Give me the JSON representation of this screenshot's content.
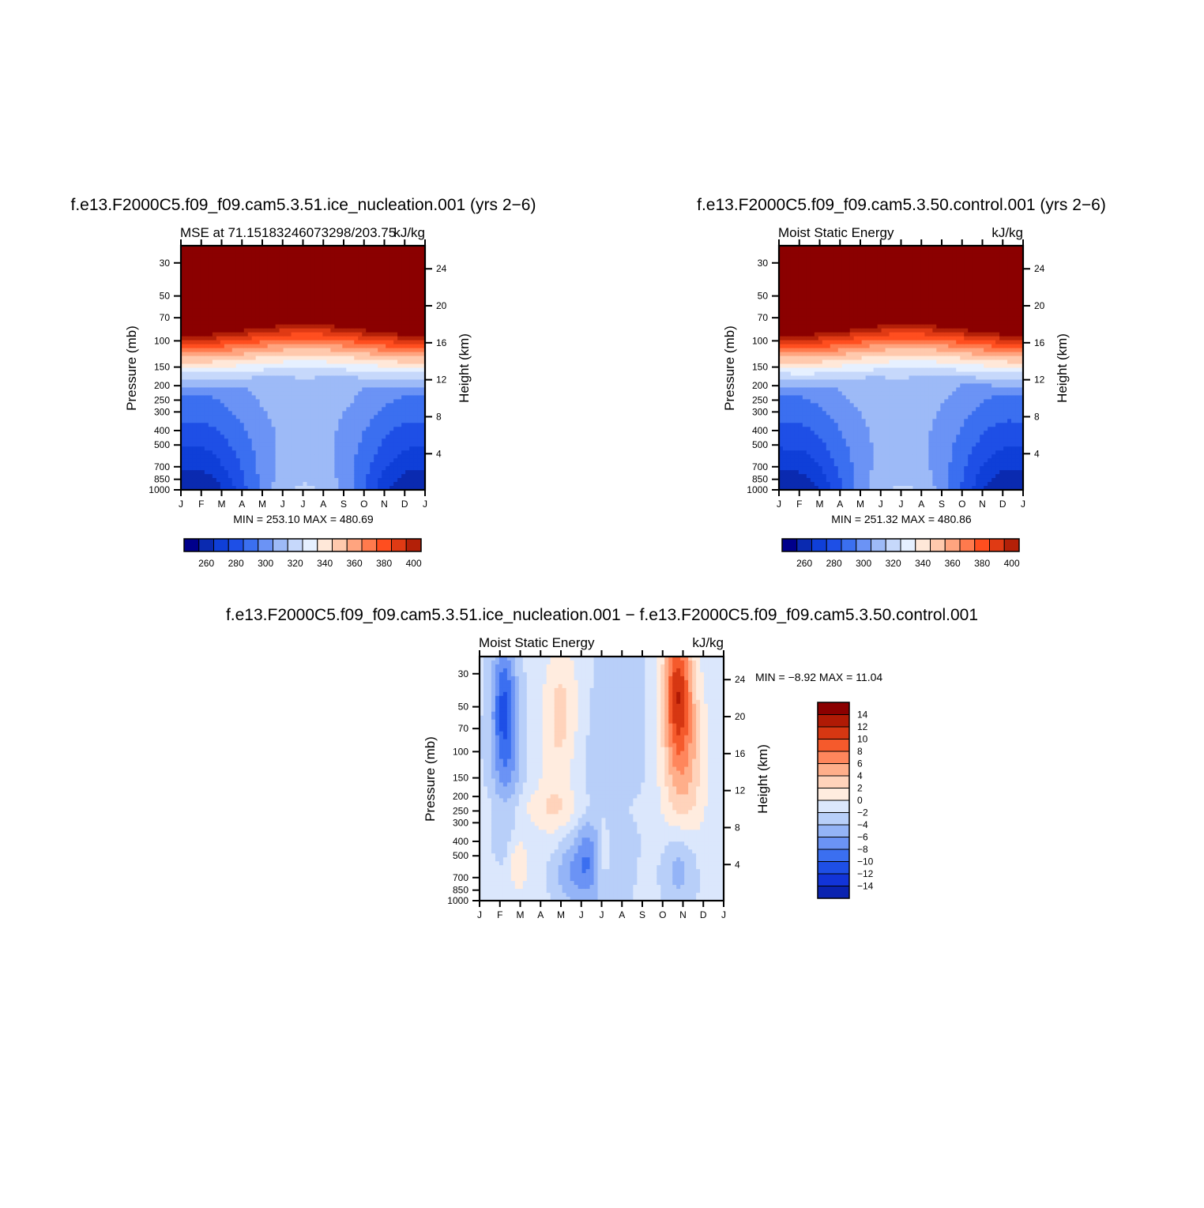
{
  "colors": {
    "absolute_levels": [
      "#00008b",
      "#0a2ab0",
      "#0f3fd8",
      "#1e4fe6",
      "#3b6ff0",
      "#6b93f5",
      "#9dbaf7",
      "#c6d8fb",
      "#e6f0ff",
      "#ffe8d9",
      "#ffc9ad",
      "#ffa47f",
      "#ff7a4d",
      "#ff4e1f",
      "#e03a14",
      "#b32008",
      "#8b0000"
    ],
    "difference_levels": [
      "#000080",
      "#0a23b0",
      "#1234d8",
      "#1e4fe6",
      "#3b6ff0",
      "#6b93f5",
      "#94b4f7",
      "#b8cff9",
      "#dbe7fc",
      "#ffecdf",
      "#ffd3bb",
      "#ffae8a",
      "#ff865c",
      "#f55a2c",
      "#d63712",
      "#b01a05",
      "#8b0000"
    ]
  },
  "charts": [
    {
      "id": "panel-test",
      "title": "f.e13.F2000C5.f09_f09.cam5.3.51.ice_nucleation.001 (yrs 2−6)",
      "left_label": "MSE at 71.15183246073298/203.75",
      "right_label": "kJ/kg",
      "ylabel": "Pressure (mb)",
      "y2label": "Height (km)",
      "minmax": "MIN = 253.10 MAX = 480.69",
      "colorbar_ticks": [
        "260",
        "280",
        "300",
        "320",
        "340",
        "360",
        "380",
        "400"
      ]
    },
    {
      "id": "panel-control",
      "title": "f.e13.F2000C5.f09_f09.cam5.3.50.control.001 (yrs 2−6)",
      "left_label": "Moist Static Energy",
      "right_label": "kJ/kg",
      "ylabel": "Pressure (mb)",
      "y2label": "Height (km)",
      "minmax": "MIN = 251.32 MAX = 480.86",
      "colorbar_ticks": [
        "260",
        "280",
        "300",
        "320",
        "340",
        "360",
        "380",
        "400"
      ]
    },
    {
      "id": "panel-diff",
      "title": "f.e13.F2000C5.f09_f09.cam5.3.51.ice_nucleation.001 − f.e13.F2000C5.f09_f09.cam5.3.50.control.001",
      "left_label": "Moist Static Energy",
      "right_label": "kJ/kg",
      "ylabel": "Pressure (mb)",
      "y2label": "Height (km)",
      "minmax": "MIN =   −8.92 MAX =   11.04",
      "colorbar_ticks": [
        "14",
        "12",
        "10",
        "8",
        "6",
        "4",
        "2",
        "0",
        "−2",
        "−4",
        "−6",
        "−8",
        "−10",
        "−12",
        "−14"
      ]
    }
  ],
  "chart_data": [
    {
      "type": "heatmap",
      "title": "f.e13.F2000C5.f09_f09.cam5.3.51.ice_nucleation.001 (yrs 2−6)",
      "xlabel": "",
      "ylabel": "Pressure (mb)",
      "y2label": "Height (km)",
      "x_ticks": [
        "J",
        "F",
        "M",
        "A",
        "M",
        "J",
        "J",
        "A",
        "S",
        "O",
        "N",
        "D",
        "J"
      ],
      "y_ticks": [
        30,
        50,
        70,
        100,
        150,
        200,
        250,
        300,
        400,
        500,
        700,
        850,
        1000
      ],
      "y2_ticks": [
        4,
        8,
        12,
        16,
        20,
        24
      ],
      "y_scale": "log",
      "ylim": [
        1000,
        23
      ],
      "colorbar": [
        260,
        280,
        300,
        320,
        340,
        360,
        380,
        400
      ],
      "min": 253.1,
      "max": 480.69,
      "units": "kJ/kg"
    },
    {
      "type": "heatmap",
      "title": "f.e13.F2000C5.f09_f09.cam5.3.50.control.001 (yrs 2−6)",
      "xlabel": "",
      "ylabel": "Pressure (mb)",
      "y2label": "Height (km)",
      "x_ticks": [
        "J",
        "F",
        "M",
        "A",
        "M",
        "J",
        "J",
        "A",
        "S",
        "O",
        "N",
        "D",
        "J"
      ],
      "y_ticks": [
        30,
        50,
        70,
        100,
        150,
        200,
        250,
        300,
        400,
        500,
        700,
        850,
        1000
      ],
      "y2_ticks": [
        4,
        8,
        12,
        16,
        20,
        24
      ],
      "y_scale": "log",
      "ylim": [
        1000,
        23
      ],
      "colorbar": [
        260,
        280,
        300,
        320,
        340,
        360,
        380,
        400
      ],
      "min": 251.32,
      "max": 480.86,
      "units": "kJ/kg"
    },
    {
      "type": "heatmap",
      "title": "f.e13.F2000C5.f09_f09.cam5.3.51.ice_nucleation.001 − f.e13.F2000C5.f09_f09.cam5.3.50.control.001",
      "xlabel": "",
      "ylabel": "Pressure (mb)",
      "y2label": "Height (km)",
      "x_ticks": [
        "J",
        "F",
        "M",
        "A",
        "M",
        "J",
        "J",
        "A",
        "S",
        "O",
        "N",
        "D",
        "J"
      ],
      "y_ticks": [
        30,
        50,
        70,
        100,
        150,
        200,
        250,
        300,
        400,
        500,
        700,
        850,
        1000
      ],
      "y2_ticks": [
        4,
        8,
        12,
        16,
        20,
        24
      ],
      "y_scale": "log",
      "ylim": [
        1000,
        23
      ],
      "colorbar": [
        -14,
        -12,
        -10,
        -8,
        -6,
        -4,
        -2,
        0,
        2,
        4,
        6,
        8,
        10,
        12,
        14
      ],
      "min": -8.92,
      "max": 11.04,
      "units": "kJ/kg"
    }
  ]
}
